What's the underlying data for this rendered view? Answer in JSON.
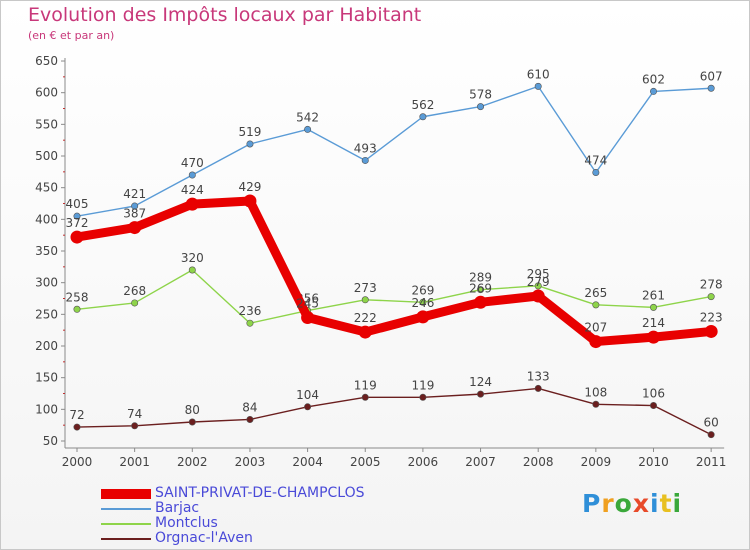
{
  "header": {
    "title": "Evolution des Impôts locaux par Habitant",
    "subtitle": "(en € et par an)"
  },
  "logo": {
    "text": "Proxiti"
  },
  "chart_data": {
    "type": "line",
    "title": "Evolution des Impôts locaux par Habitant",
    "subtitle": "(en € et par an)",
    "xlabel": "",
    "ylabel": "",
    "x": [
      "2000",
      "2001",
      "2002",
      "2003",
      "2004",
      "2005",
      "2006",
      "2007",
      "2008",
      "2009",
      "2010",
      "2011"
    ],
    "yticks": [
      50,
      100,
      150,
      200,
      250,
      300,
      350,
      400,
      450,
      500,
      550,
      600,
      650
    ],
    "ylim": [
      50,
      650
    ],
    "grid": false,
    "legend_position": "bottom-left",
    "series": [
      {
        "name": "SAINT-PRIVAT-DE-CHAMPCLOS",
        "color": "#e80000",
        "values": [
          372,
          387,
          424,
          429,
          245,
          222,
          246,
          269,
          279,
          207,
          214,
          223
        ]
      },
      {
        "name": "Barjac",
        "color": "#5a9bd6",
        "values": [
          405,
          421,
          470,
          519,
          542,
          493,
          562,
          578,
          610,
          474,
          602,
          607
        ]
      },
      {
        "name": "Montclus",
        "color": "#8ed44a",
        "values": [
          258,
          268,
          320,
          236,
          256,
          273,
          269,
          289,
          295,
          265,
          261,
          278
        ]
      },
      {
        "name": "Orgnac-l'Aven",
        "color": "#6b1f1f",
        "values": [
          72,
          74,
          80,
          84,
          104,
          119,
          119,
          124,
          133,
          108,
          106,
          60
        ]
      }
    ]
  }
}
